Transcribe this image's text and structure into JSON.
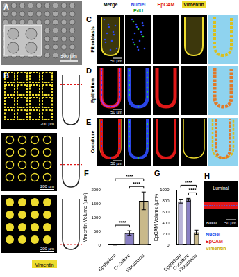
{
  "figure": {
    "panel_A": {
      "label": "A",
      "scale_bar": "500 µm"
    },
    "panel_B": {
      "label": "B",
      "scale_bars": [
        "200 µm",
        "200 µm",
        "200 µm"
      ],
      "stain": "Vimentin"
    },
    "panels_C_E": {
      "columns": [
        "Merge",
        "Nuclei",
        "EdU",
        "EpCAM",
        "Vimentin"
      ],
      "rows": [
        {
          "label": "C",
          "name": "Fibroblasts",
          "scale_bar": "50 µm"
        },
        {
          "label": "D",
          "name": "Epithelium",
          "scale_bar": "50 µm"
        },
        {
          "label": "E",
          "name": "Coculture",
          "scale_bar": "50 µm"
        }
      ]
    },
    "panel_H": {
      "label": "H",
      "top": "Luminal",
      "bottom": "Basal",
      "scale_bar": "50 µm",
      "legend": [
        "Nuclei",
        "EpCAM",
        "Vimentin"
      ]
    }
  },
  "chart_data": [
    {
      "type": "bar",
      "label": "F",
      "y_label": "Vimentin Volume (µm³)",
      "categories": [
        "Epithelium",
        "Coculture",
        "Fibroblasts"
      ],
      "values": [
        5,
        430,
        1600
      ],
      "errors": [
        3,
        90,
        320
      ],
      "colors": [
        "#b9b4d8",
        "#8a80c4",
        "#c9b98a"
      ],
      "ylim": [
        0,
        2000
      ],
      "yticks": [
        0,
        500,
        1000,
        1500,
        2000
      ],
      "grid": false,
      "significance": [
        {
          "from": 0,
          "to": 1,
          "label": "****"
        },
        {
          "from": 1,
          "to": 2,
          "label": "****"
        },
        {
          "from": 0,
          "to": 2,
          "label": "****"
        }
      ]
    },
    {
      "type": "bar",
      "label": "G",
      "y_label": "EpCAM Volume (µm³)",
      "categories": [
        "Epithelium",
        "Coculture",
        "Fibroblasts"
      ],
      "values": [
        790,
        820,
        230
      ],
      "errors": [
        30,
        25,
        40
      ],
      "colors": [
        "#b9b4d8",
        "#8a80c4",
        "#c9b98a"
      ],
      "ylim": [
        0,
        1000
      ],
      "yticks": [
        0,
        200,
        400,
        600,
        800,
        1000
      ],
      "grid": false,
      "significance": [
        {
          "from": 1,
          "to": 2,
          "label": "****"
        },
        {
          "from": 0,
          "to": 2,
          "label": "****"
        }
      ]
    }
  ]
}
